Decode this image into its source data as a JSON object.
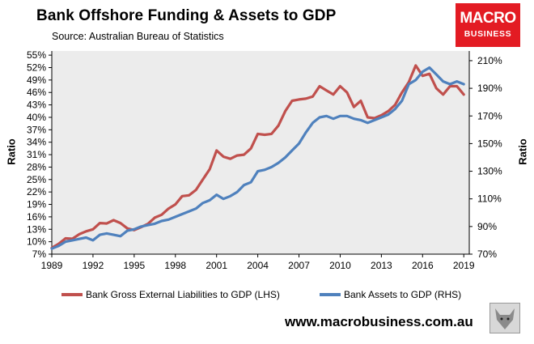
{
  "header": {
    "title": "Bank Offshore Funding & Assets to GDP",
    "source": "Source:  Australian Bureau of Statistics"
  },
  "logo": {
    "line1": "MACRO",
    "line2": "BUSINESS",
    "color": "#e31b23"
  },
  "footer": {
    "url": "www.macrobusiness.com.au",
    "icon": "wolf-icon"
  },
  "chart_data": {
    "type": "line",
    "title": "Bank Offshore Funding & Assets to GDP",
    "xlabel": "",
    "ylabel": "Ratio",
    "y2label": "Ratio",
    "xlim": [
      1989,
      2019.4
    ],
    "ylim": [
      7,
      56
    ],
    "y2lim": [
      70,
      217
    ],
    "x_ticks": [
      "1989",
      "1992",
      "1995",
      "1998",
      "2001",
      "2004",
      "2007",
      "2010",
      "2013",
      "2016",
      "2019"
    ],
    "y_ticks": [
      "7%",
      "10%",
      "13%",
      "16%",
      "19%",
      "22%",
      "25%",
      "28%",
      "31%",
      "34%",
      "37%",
      "40%",
      "43%",
      "46%",
      "49%",
      "52%",
      "55%"
    ],
    "y2_ticks": [
      "70%",
      "90%",
      "110%",
      "130%",
      "150%",
      "170%",
      "190%",
      "210%"
    ],
    "grid": false,
    "legend_position": "bottom",
    "series": [
      {
        "name": "Bank Gross External Liabilities to GDP (LHS)",
        "axis": "left",
        "color": "#c0504d",
        "x": [
          1989,
          1989.5,
          1990,
          1990.5,
          1991,
          1991.5,
          1992,
          1992.5,
          1993,
          1993.5,
          1994,
          1994.5,
          1995,
          1995.5,
          1996,
          1996.5,
          1997,
          1997.5,
          1998,
          1998.5,
          1999,
          1999.5,
          2000,
          2000.5,
          2001,
          2001.5,
          2002,
          2002.5,
          2003,
          2003.5,
          2004,
          2004.5,
          2005,
          2005.5,
          2006,
          2006.5,
          2007,
          2007.5,
          2008,
          2008.5,
          2009,
          2009.5,
          2010,
          2010.5,
          2011,
          2011.5,
          2012,
          2012.5,
          2013,
          2013.5,
          2014,
          2014.5,
          2015,
          2015.5,
          2016,
          2016.5,
          2017,
          2017.5,
          2018,
          2018.5,
          2019
        ],
        "values": [
          8.5,
          9.5,
          10.8,
          10.7,
          11.8,
          12.5,
          13.0,
          14.5,
          14.4,
          15.2,
          14.5,
          13.2,
          12.8,
          13.5,
          14.3,
          15.8,
          16.5,
          18.0,
          19.0,
          21.0,
          21.2,
          22.5,
          25.0,
          27.5,
          32.0,
          30.5,
          30.0,
          30.8,
          31.0,
          32.5,
          36.0,
          35.8,
          36.0,
          38.0,
          41.5,
          44.0,
          44.3,
          44.5,
          45.0,
          47.5,
          46.5,
          45.5,
          47.5,
          46.0,
          42.5,
          44.0,
          40.0,
          39.8,
          40.5,
          41.5,
          43.0,
          46.0,
          48.5,
          52.5,
          50.0,
          50.5,
          47.0,
          45.5,
          47.5,
          47.5,
          45.5
        ]
      },
      {
        "name": "Bank Assets to GDP (RHS)",
        "axis": "right",
        "color": "#4f81bd",
        "x": [
          1989,
          1989.5,
          1990,
          1990.5,
          1991,
          1991.5,
          1992,
          1992.5,
          1993,
          1993.5,
          1994,
          1994.5,
          1995,
          1995.5,
          1996,
          1996.5,
          1997,
          1997.5,
          1998,
          1998.5,
          1999,
          1999.5,
          2000,
          2000.5,
          2001,
          2001.5,
          2002,
          2002.5,
          2003,
          2003.5,
          2004,
          2004.5,
          2005,
          2005.5,
          2006,
          2006.5,
          2007,
          2007.5,
          2008,
          2008.5,
          2009,
          2009.5,
          2010,
          2010.5,
          2011,
          2011.5,
          2012,
          2012.5,
          2013,
          2013.5,
          2014,
          2014.5,
          2015,
          2015.5,
          2016,
          2016.5,
          2017,
          2017.5,
          2018,
          2018.5,
          2019
        ],
        "values": [
          74,
          76,
          79,
          80,
          81,
          82,
          80,
          84,
          85,
          84,
          83,
          87,
          88,
          90,
          91,
          92,
          94,
          95,
          97,
          99,
          101,
          103,
          107,
          109,
          113,
          110,
          112,
          115,
          120,
          122,
          130,
          131,
          133,
          136,
          140,
          145,
          150,
          158,
          165,
          169,
          170,
          168,
          170,
          170,
          168,
          167,
          165,
          167,
          169,
          171,
          175,
          181,
          193,
          196,
          202,
          205,
          200,
          195,
          193,
          195,
          193
        ]
      }
    ]
  }
}
